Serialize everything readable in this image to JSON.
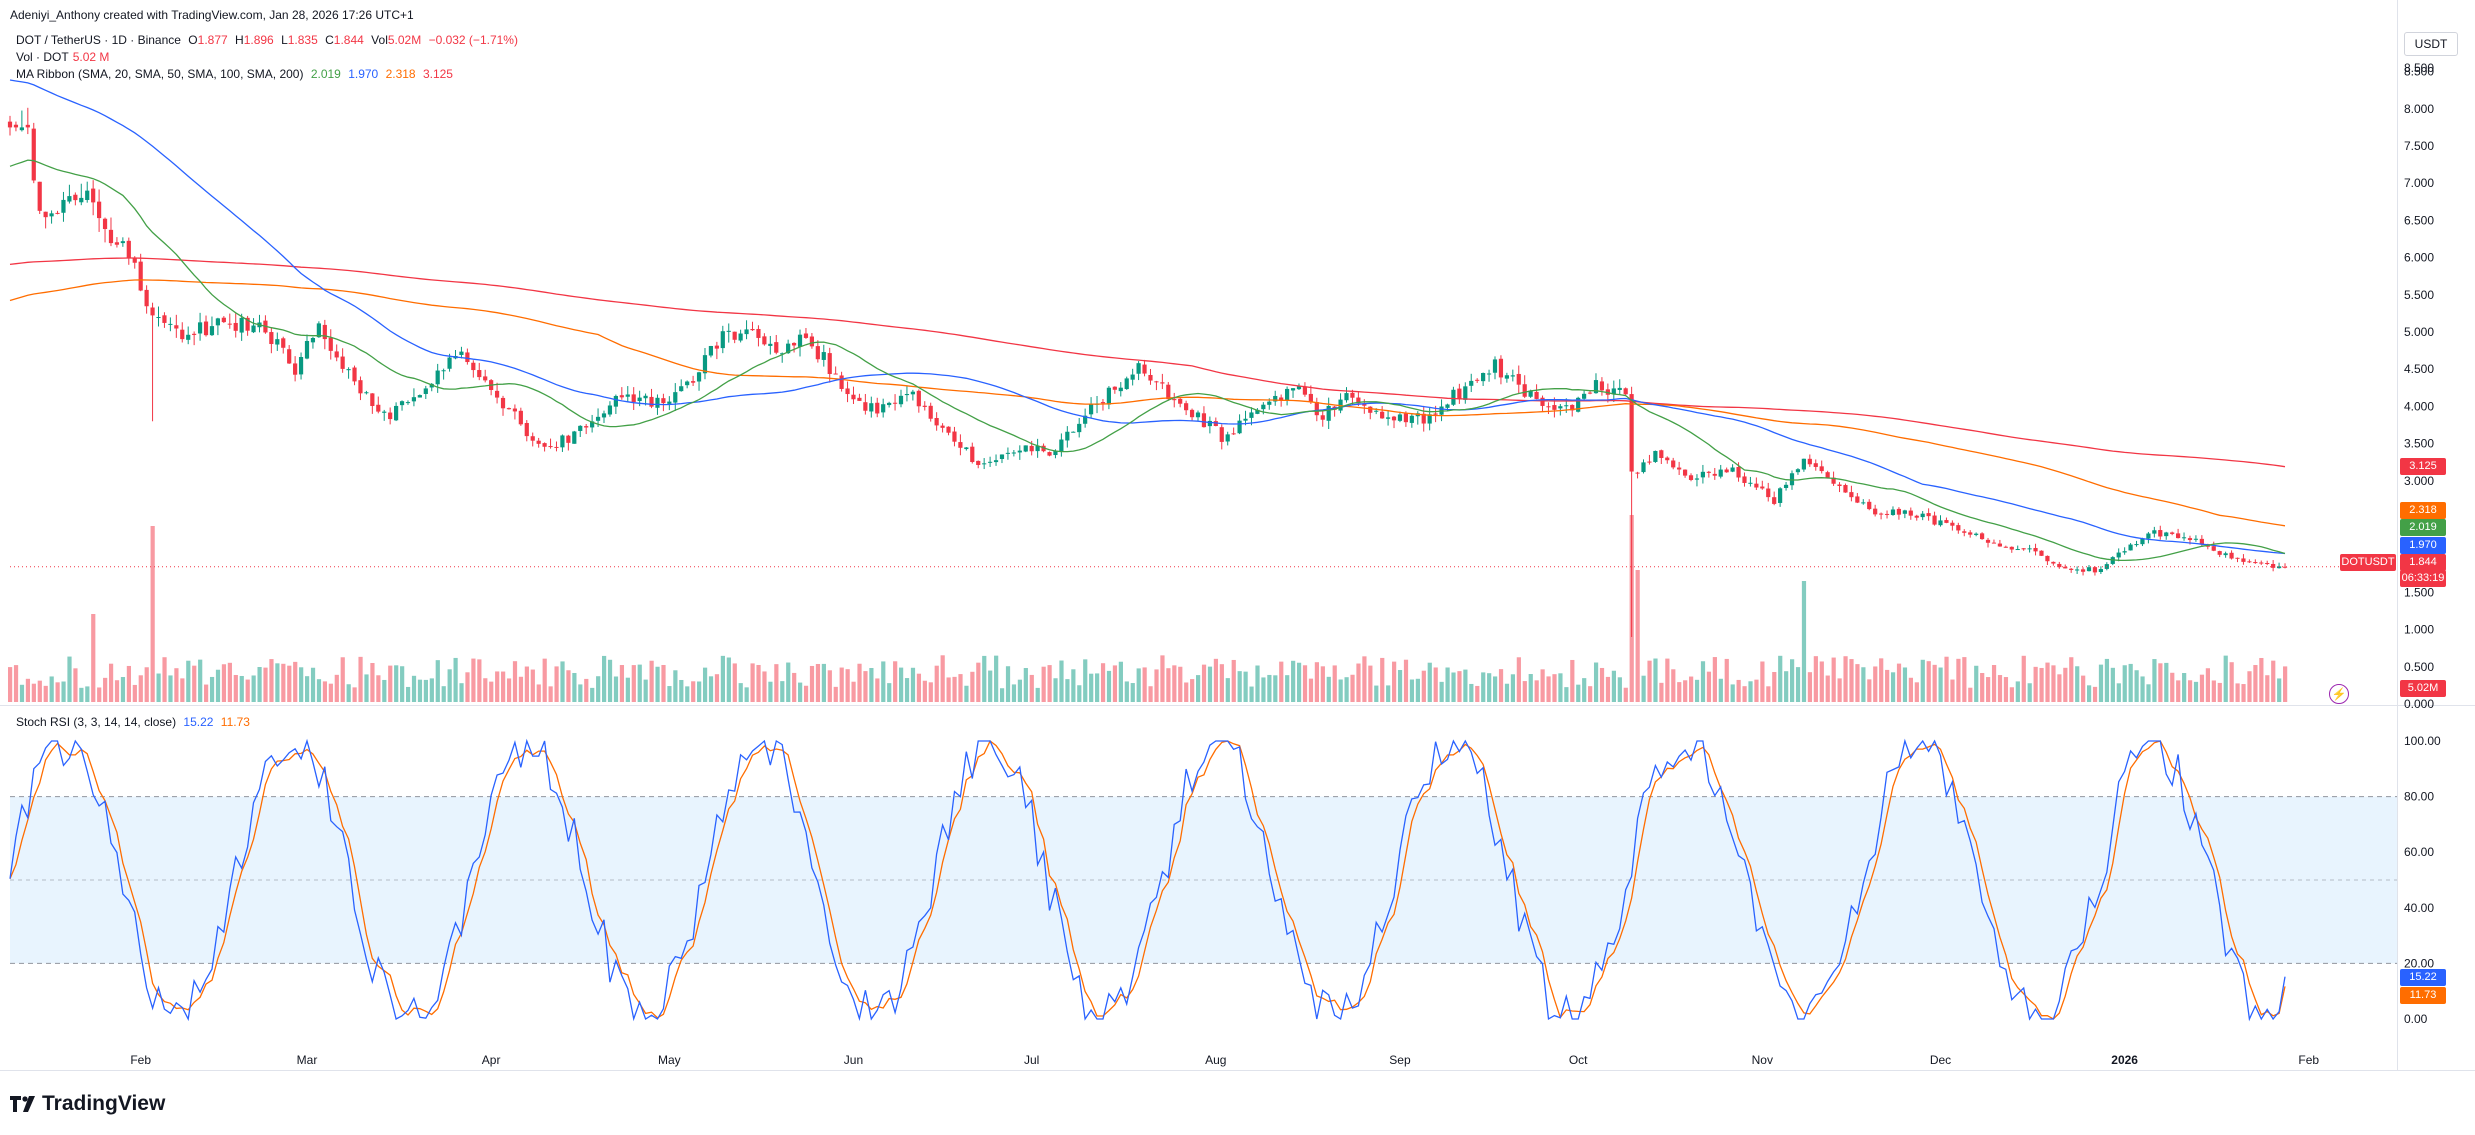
{
  "header": {
    "created_by": "Adeniyi_Anthony created with TradingView.com, Jan 28, 2026 17:26 UTC+1"
  },
  "legend": {
    "symbol_title": "DOT / TetherUS · 1D · Binance",
    "ohlc": {
      "o_label": "O",
      "o": "1.877",
      "h_label": "H",
      "h": "1.896",
      "l_label": "L",
      "l": "1.835",
      "c_label": "C",
      "c": "1.844",
      "vol_label": "Vol",
      "vol": "5.02M",
      "change": "−0.032 (−1.71%)"
    },
    "volume_title": "Vol · DOT",
    "volume_value": "5.02 M",
    "ma_title": "MA Ribbon (SMA, 20, SMA, 50, SMA, 100, SMA, 200)",
    "ma_values": [
      "2.019",
      "1.970",
      "2.318",
      "3.125"
    ],
    "stoch_title": "Stoch RSI (3, 3, 14, 14, close)",
    "stoch_values": [
      "15.22",
      "11.73"
    ]
  },
  "currency_button": "USDT",
  "symbol_tag": "DOTUSDT",
  "price_tags": {
    "ma200": "3.125",
    "ma100": "2.318",
    "ma20": "2.019",
    "ma50": "1.970",
    "last": "1.844",
    "countdown": "06:33:19",
    "volume": "5.02M",
    "stoch_k": "15.22",
    "stoch_d": "11.73"
  },
  "logo_text": "TradingView",
  "colors": {
    "up": "#089981",
    "down": "#f23645",
    "ma20": "#43a047",
    "ma50": "#2962ff",
    "ma100": "#ff6d00",
    "ma200": "#f23645",
    "stoch_k": "#2962ff",
    "stoch_d": "#ff6d00",
    "stoch_band": "#2196f3"
  },
  "chart_data": {
    "type": "candlestick",
    "symbol": "DOT / TetherUS",
    "interval": "1D",
    "exchange": "Binance",
    "x_axis_labels": [
      "Feb",
      "Mar",
      "Apr",
      "May",
      "Jun",
      "Jul",
      "Aug",
      "Sep",
      "Oct",
      "Nov",
      "Dec",
      "2026",
      "Feb"
    ],
    "price_axis": {
      "ticks": [
        "8.500",
        "8.000",
        "7.500",
        "7.000",
        "6.500",
        "6.000",
        "5.500",
        "5.000",
        "4.500",
        "4.000",
        "3.500",
        "3.000",
        "2.500",
        "2.000",
        "1.500",
        "1.000",
        "0.500",
        "0.000"
      ],
      "range": [
        0.0,
        8.5
      ]
    },
    "stoch_axis": {
      "ticks": [
        "100.00",
        "80.00",
        "60.00",
        "40.00",
        "20.00",
        "0.00"
      ],
      "range": [
        0,
        100
      ],
      "band": [
        20,
        80
      ],
      "midline": 50
    },
    "price_anchors": [
      [
        "2025-01-13",
        7.75
      ],
      [
        "2025-01-15",
        6.6
      ],
      [
        "2025-01-22",
        6.9
      ],
      [
        "2025-01-25",
        6.5
      ],
      [
        "2025-01-31",
        5.9
      ],
      [
        "2025-02-03",
        5.2
      ],
      [
        "2025-02-08",
        4.9
      ],
      [
        "2025-02-14",
        5.15
      ],
      [
        "2025-02-22",
        5.05
      ],
      [
        "2025-02-27",
        4.45
      ],
      [
        "2025-03-03",
        5.1
      ],
      [
        "2025-03-10",
        4.2
      ],
      [
        "2025-03-15",
        3.85
      ],
      [
        "2025-03-20",
        4.2
      ],
      [
        "2025-03-27",
        4.7
      ],
      [
        "2025-04-03",
        4.05
      ],
      [
        "2025-04-09",
        3.45
      ],
      [
        "2025-04-15",
        3.6
      ],
      [
        "2025-04-22",
        4.15
      ],
      [
        "2025-04-30",
        4.05
      ],
      [
        "2025-05-05",
        4.4
      ],
      [
        "2025-05-10",
        5.0
      ],
      [
        "2025-05-14",
        5.0
      ],
      [
        "2025-05-20",
        4.75
      ],
      [
        "2025-05-24",
        4.95
      ],
      [
        "2025-05-31",
        4.2
      ],
      [
        "2025-06-05",
        3.9
      ],
      [
        "2025-06-11",
        4.15
      ],
      [
        "2025-06-17",
        3.65
      ],
      [
        "2025-06-22",
        3.2
      ],
      [
        "2025-06-28",
        3.45
      ],
      [
        "2025-07-05",
        3.4
      ],
      [
        "2025-07-10",
        3.9
      ],
      [
        "2025-07-19",
        4.5
      ],
      [
        "2025-07-25",
        4.1
      ],
      [
        "2025-08-02",
        3.6
      ],
      [
        "2025-08-09",
        3.95
      ],
      [
        "2025-08-14",
        4.25
      ],
      [
        "2025-08-19",
        3.9
      ],
      [
        "2025-08-24",
        4.2
      ],
      [
        "2025-08-29",
        3.85
      ],
      [
        "2025-09-05",
        3.85
      ],
      [
        "2025-09-12",
        4.25
      ],
      [
        "2025-09-17",
        4.55
      ],
      [
        "2025-09-21",
        4.3
      ],
      [
        "2025-09-25",
        3.95
      ],
      [
        "2025-09-30",
        3.95
      ],
      [
        "2025-10-04",
        4.3
      ],
      [
        "2025-10-09",
        4.15
      ],
      [
        "2025-10-10",
        3.1
      ],
      [
        "2025-10-12",
        3.2
      ],
      [
        "2025-10-14",
        3.4
      ],
      [
        "2025-10-20",
        3.05
      ],
      [
        "2025-10-27",
        3.15
      ],
      [
        "2025-11-01",
        2.85
      ],
      [
        "2025-11-03",
        2.75
      ],
      [
        "2025-11-08",
        3.3
      ],
      [
        "2025-11-14",
        2.9
      ],
      [
        "2025-11-20",
        2.6
      ],
      [
        "2025-11-25",
        2.6
      ],
      [
        "2025-12-02",
        2.4
      ],
      [
        "2025-12-09",
        2.2
      ],
      [
        "2025-12-16",
        2.05
      ],
      [
        "2025-12-23",
        1.8
      ],
      [
        "2025-12-28",
        1.8
      ],
      [
        "2026-01-01",
        2.1
      ],
      [
        "2026-01-06",
        2.3
      ],
      [
        "2026-01-12",
        2.25
      ],
      [
        "2026-01-16",
        2.05
      ],
      [
        "2026-01-20",
        1.95
      ],
      [
        "2026-01-25",
        1.85
      ],
      [
        "2026-01-28",
        1.844
      ]
    ],
    "last_price": 1.844,
    "moving_averages": [
      {
        "name": "SMA 20",
        "value": 2.019
      },
      {
        "name": "SMA 50",
        "value": 1.97
      },
      {
        "name": "SMA 100",
        "value": 2.318
      },
      {
        "name": "SMA 200",
        "value": 3.125
      }
    ],
    "volume": {
      "last": "5.02M"
    },
    "stoch_rsi": {
      "k": 15.22,
      "d": 11.73
    }
  }
}
